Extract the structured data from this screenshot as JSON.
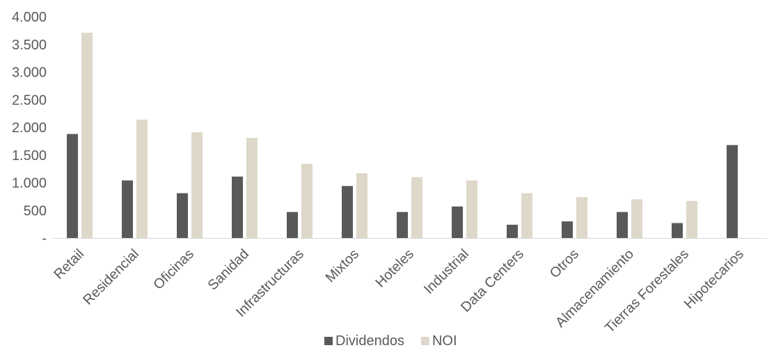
{
  "chart_data": {
    "type": "bar",
    "categories": [
      "Retail",
      "Residencial",
      "Oficinas",
      "Sanidad",
      "Infrastructuras",
      "Mixtos",
      "Hoteles",
      "Industrial",
      "Data Centers",
      "Otros",
      "Almacenamiento",
      "Tierras Forestales",
      "Hipotecarios"
    ],
    "series": [
      {
        "name": "Dividendos",
        "color": "#595959",
        "values": [
          1880,
          1040,
          810,
          1110,
          470,
          940,
          470,
          570,
          240,
          300,
          470,
          270,
          1680
        ]
      },
      {
        "name": "NOI",
        "color": "#ddd8ca",
        "values": [
          3710,
          2140,
          1910,
          1810,
          1340,
          1170,
          1100,
          1040,
          810,
          740,
          700,
          670,
          0
        ]
      }
    ],
    "yticks": [
      "-",
      "500",
      "1.000",
      "1.500",
      "2.000",
      "2.500",
      "3.000",
      "3.500",
      "4.000"
    ],
    "ylim": [
      0,
      4000
    ],
    "grid": false,
    "legend_position": "bottom"
  }
}
